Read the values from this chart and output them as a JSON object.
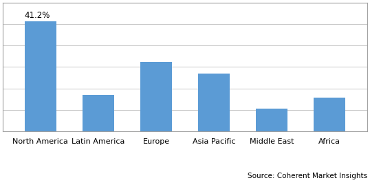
{
  "categories": [
    "North America",
    "Latin America",
    "Europe",
    "Asia Pacific",
    "Middle East",
    "Africa"
  ],
  "values": [
    41.2,
    13.5,
    26.0,
    21.5,
    8.5,
    12.5
  ],
  "bar_color": "#5B9BD5",
  "annotation_label": "41.2%",
  "annotation_index": 0,
  "source_text": "Source: Coherent Market Insights",
  "ylim": [
    0,
    48
  ],
  "background_color": "#ffffff",
  "grid_color": "#c8c8c8",
  "bar_width": 0.55,
  "label_fontsize": 8,
  "annotation_fontsize": 8.5,
  "source_fontsize": 7.5,
  "border_color": "#a0a0a0"
}
